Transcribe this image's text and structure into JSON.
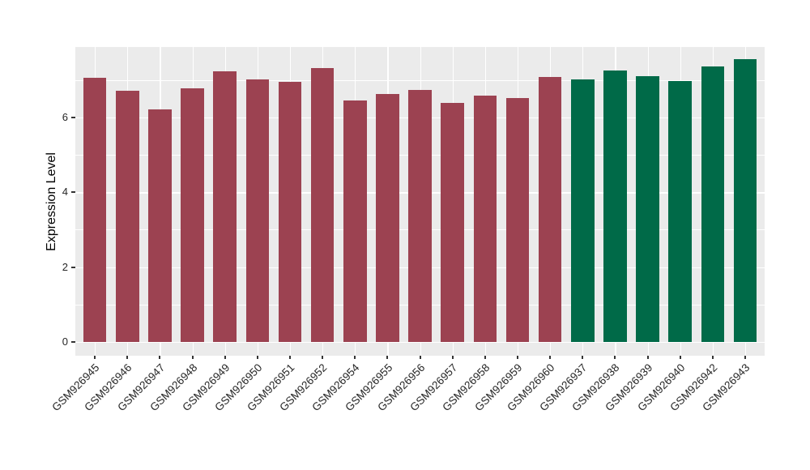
{
  "chart_data": {
    "type": "bar",
    "title": "",
    "xlabel": "",
    "ylabel": "Expression Level",
    "ylim": [
      0,
      7.9
    ],
    "yticks": [
      0,
      2,
      4,
      6
    ],
    "gridlines_at": [
      0,
      1,
      2,
      3,
      4,
      5,
      6,
      7
    ],
    "grid": "on",
    "legend_position": "none",
    "categories": [
      "GSM926945",
      "GSM926946",
      "GSM926947",
      "GSM926948",
      "GSM926949",
      "GSM926950",
      "GSM926951",
      "GSM926952",
      "GSM926954",
      "GSM926955",
      "GSM926956",
      "GSM926957",
      "GSM926958",
      "GSM926959",
      "GSM926960",
      "GSM926937",
      "GSM926938",
      "GSM926939",
      "GSM926940",
      "GSM926942",
      "GSM926943"
    ],
    "values": [
      7.05,
      6.72,
      6.22,
      6.78,
      7.22,
      7.01,
      6.95,
      7.32,
      6.45,
      6.62,
      6.73,
      6.38,
      6.58,
      6.52,
      7.08,
      7.02,
      7.25,
      7.1,
      6.96,
      7.36,
      7.55
    ],
    "bar_groups": [
      "red",
      "red",
      "red",
      "red",
      "red",
      "red",
      "red",
      "red",
      "red",
      "red",
      "red",
      "red",
      "red",
      "red",
      "red",
      "green",
      "green",
      "green",
      "green",
      "green",
      "green"
    ],
    "colors": {
      "red_bar": "#9C4251",
      "green_bar": "#006A48",
      "panel_bg": "#EBEBEB",
      "grid": "#FFFFFF",
      "tick": "#333333",
      "tick_text": "#262626",
      "axis_title_text": "#000000"
    }
  }
}
